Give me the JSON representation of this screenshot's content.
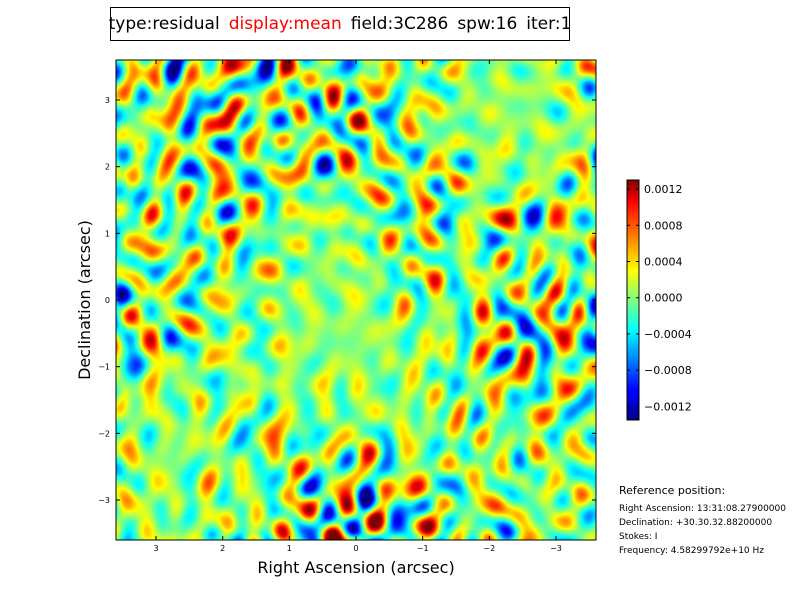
{
  "header": {
    "type_label": "type:residual",
    "display_label": "display:mean",
    "field_label": "field:3C286",
    "spw_label": "spw:16",
    "iter_label": "iter:1",
    "display_color": "#ff0000"
  },
  "chart_data": {
    "type": "heatmap",
    "xlabel": "Right Ascension (arcsec)",
    "ylabel": "Declination (arcsec)",
    "xlim": [
      3.6,
      -3.6
    ],
    "ylim": [
      -3.6,
      3.6
    ],
    "x_ticks": [
      3,
      2,
      1,
      0,
      -1,
      -2,
      -3
    ],
    "x_tick_labels": [
      "3",
      "2",
      "1",
      "0",
      "−1",
      "−2",
      "−3"
    ],
    "y_ticks": [
      3,
      2,
      1,
      0,
      -1,
      -2,
      -3
    ],
    "y_tick_labels": [
      "3",
      "2",
      "1",
      "0",
      "−1",
      "−2",
      "−3"
    ],
    "colormap": "jet",
    "value_range": [
      -0.00135,
      0.0013
    ],
    "colorbar_ticks": [
      0.0012,
      0.0008,
      0.0004,
      0.0,
      -0.0004,
      -0.0008,
      -0.0012
    ],
    "colorbar_tick_labels": [
      "0.0012",
      "0.0008",
      "0.0004",
      "0.0000",
      "−0.0004",
      "−0.0008",
      "−0.0012"
    ]
  },
  "reference": {
    "heading": "Reference position:",
    "ra": "Right Ascension: 13:31:08.27900000",
    "dec": "Declination: +30.30.32.88200000",
    "stokes": "Stokes: I",
    "frequency": "Frequency: 4.58299792e+10 Hz"
  }
}
